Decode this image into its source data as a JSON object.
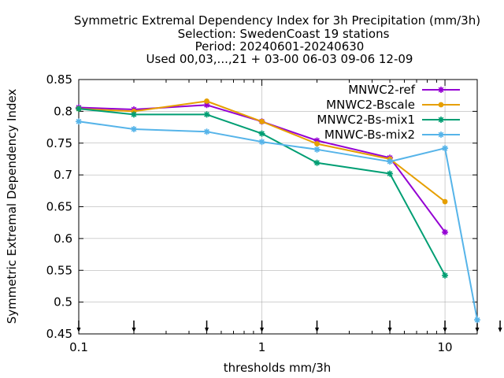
{
  "chart_data": {
    "type": "line",
    "title_lines": [
      "Symmetric Extremal Dependency Index  for 3h Precipitation (mm/3h)",
      "Selection: SwedenCoast     19 stations",
      "Period: 20240601-20240630",
      "Used 00,03,...,21 + 03-00 06-03 09-06 12-09"
    ],
    "xlabel": "thresholds mm/3h",
    "ylabel": "Symmetric Extremal Dependency Index",
    "x_scale": "log",
    "xlim": [
      0.1,
      15
    ],
    "ylim": [
      0.45,
      0.85
    ],
    "x_ticks": [
      {
        "value": 0.1,
        "label": "0.1"
      },
      {
        "value": 1,
        "label": "1"
      },
      {
        "value": 10,
        "label": "10"
      }
    ],
    "y_ticks": [
      {
        "value": 0.45,
        "label": "0.45"
      },
      {
        "value": 0.5,
        "label": "0.5"
      },
      {
        "value": 0.55,
        "label": "0.55"
      },
      {
        "value": 0.6,
        "label": "0.6"
      },
      {
        "value": 0.65,
        "label": "0.65"
      },
      {
        "value": 0.7,
        "label": "0.7"
      },
      {
        "value": 0.75,
        "label": "0.75"
      },
      {
        "value": 0.8,
        "label": "0.8"
      },
      {
        "value": 0.85,
        "label": "0.85"
      }
    ],
    "grid": true,
    "legend_position": "top-right",
    "threshold_markers": [
      0.1,
      0.2,
      0.5,
      1,
      2,
      5,
      10,
      15,
      20
    ],
    "series": [
      {
        "name": "MNWC2-ref",
        "color": "#9400d3",
        "marker": "star",
        "points": [
          [
            0.1,
            0.806
          ],
          [
            0.2,
            0.803
          ],
          [
            0.5,
            0.81
          ],
          [
            1,
            0.784
          ],
          [
            2,
            0.754
          ],
          [
            5,
            0.727
          ],
          [
            10,
            0.61
          ]
        ]
      },
      {
        "name": "MNWC2-Bscale",
        "color": "#e69f00",
        "marker": "circle",
        "points": [
          [
            0.1,
            0.804
          ],
          [
            0.2,
            0.8
          ],
          [
            0.5,
            0.816
          ],
          [
            1,
            0.784
          ],
          [
            2,
            0.749
          ],
          [
            5,
            0.725
          ],
          [
            10,
            0.658
          ]
        ]
      },
      {
        "name": "MNWC2-Bs-mix1",
        "color": "#009e73",
        "marker": "star",
        "points": [
          [
            0.1,
            0.804
          ],
          [
            0.2,
            0.795
          ],
          [
            0.5,
            0.795
          ],
          [
            1,
            0.765
          ],
          [
            2,
            0.719
          ],
          [
            5,
            0.702
          ],
          [
            10,
            0.542
          ]
        ]
      },
      {
        "name": "MNWC-Bs-mix2",
        "color": "#56b4e9",
        "marker": "star",
        "points": [
          [
            0.1,
            0.784
          ],
          [
            0.2,
            0.772
          ],
          [
            0.5,
            0.768
          ],
          [
            1,
            0.752
          ],
          [
            2,
            0.74
          ],
          [
            5,
            0.721
          ],
          [
            10,
            0.742
          ],
          [
            15,
            0.472
          ]
        ]
      }
    ]
  }
}
